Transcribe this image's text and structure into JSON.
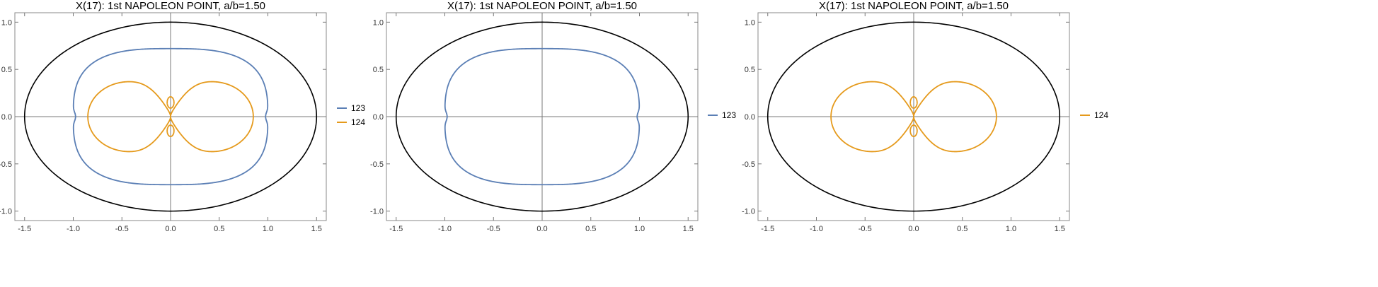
{
  "chart_data": [
    {
      "type": "line",
      "title": "X(17): 1st NAPOLEON POINT, a/b=1.50",
      "xlim": [
        -1.6,
        1.6
      ],
      "ylim": [
        -1.1,
        1.1
      ],
      "xticks": [
        "-1.5",
        "-1.0",
        "-0.5",
        "0.0",
        "0.5",
        "1.0",
        "1.5"
      ],
      "yticks": [
        "-1.0",
        "-0.5",
        "0.0",
        "0.5",
        "1.0"
      ],
      "grid": false,
      "legend_position": "right",
      "series": [
        {
          "name": "",
          "kind": "ellipse",
          "color": "#000000",
          "a": 1.5,
          "b": 1.0
        },
        {
          "name": "123",
          "kind": "rounded-loop",
          "color": "#5b7fb5",
          "rx": 1.0,
          "ry": 0.72
        },
        {
          "name": "124",
          "kind": "twin-loop",
          "color": "#e59a1c",
          "rx": 0.85,
          "ry": 0.37
        }
      ]
    },
    {
      "type": "line",
      "title": "X(17): 1st NAPOLEON POINT, a/b=1.50",
      "xlim": [
        -1.6,
        1.6
      ],
      "ylim": [
        -1.1,
        1.1
      ],
      "xticks": [
        "-1.5",
        "-1.0",
        "-0.5",
        "0.0",
        "0.5",
        "1.0",
        "1.5"
      ],
      "yticks": [
        "-1.0",
        "-0.5",
        "0.0",
        "0.5",
        "1.0"
      ],
      "grid": false,
      "legend_position": "right",
      "series": [
        {
          "name": "",
          "kind": "ellipse",
          "color": "#000000",
          "a": 1.5,
          "b": 1.0
        },
        {
          "name": "123",
          "kind": "rounded-loop",
          "color": "#5b7fb5",
          "rx": 1.0,
          "ry": 0.72
        }
      ]
    },
    {
      "type": "line",
      "title": "X(17): 1st NAPOLEON POINT, a/b=1.50",
      "xlim": [
        -1.6,
        1.6
      ],
      "ylim": [
        -1.1,
        1.1
      ],
      "xticks": [
        "-1.5",
        "-1.0",
        "-0.5",
        "0.0",
        "0.5",
        "1.0",
        "1.5"
      ],
      "yticks": [
        "-1.0",
        "-0.5",
        "0.0",
        "0.5",
        "1.0"
      ],
      "grid": false,
      "legend_position": "right",
      "series": [
        {
          "name": "",
          "kind": "ellipse",
          "color": "#000000",
          "a": 1.5,
          "b": 1.0
        },
        {
          "name": "124",
          "kind": "twin-loop",
          "color": "#e59a1c",
          "rx": 0.85,
          "ry": 0.37
        }
      ]
    }
  ]
}
